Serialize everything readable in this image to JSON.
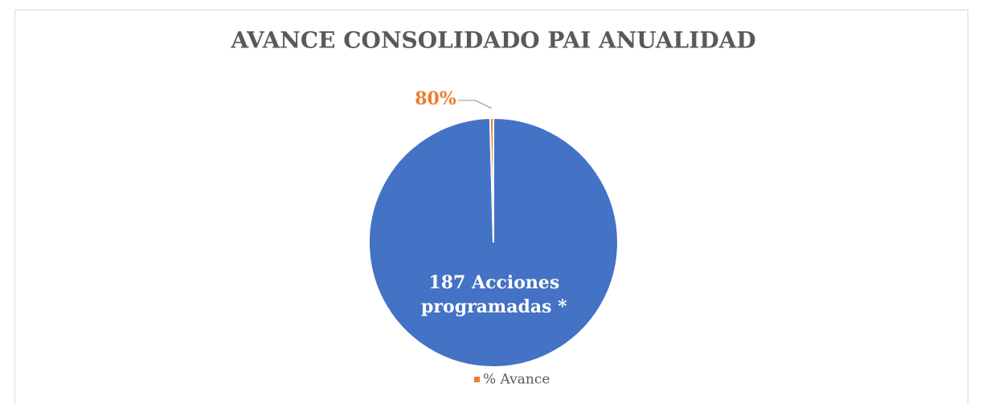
{
  "chart_data": {
    "type": "pie",
    "title": "AVANCE CONSOLIDADO PAI ANUALIDAD",
    "categories": [
      null,
      "% Avance"
    ],
    "values": [
      187,
      0.8
    ],
    "value_labels": [
      "187  Acciones programadas *",
      "80%"
    ],
    "colors": [
      "#4472c4",
      "#ed7d31"
    ],
    "legend": "bottom"
  }
}
